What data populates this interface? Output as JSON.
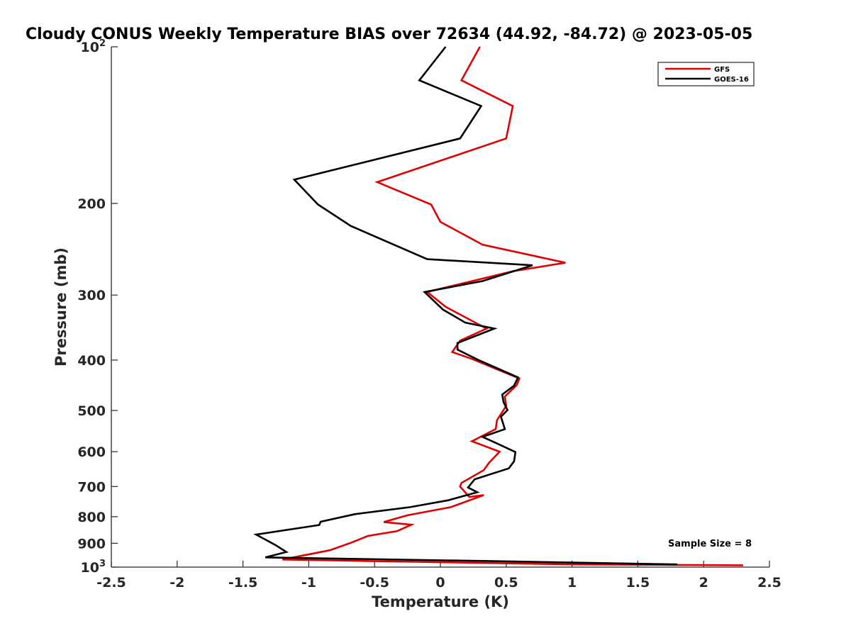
{
  "chart_data": {
    "type": "line",
    "title": "Cloudy CONUS Weekly Temperature BIAS over 72634 (44.92, -84.72) @ 2023-05-05",
    "xlabel": "Temperature (K)",
    "ylabel": "Pressure (mb)",
    "xlim": [
      -2.5,
      2.5
    ],
    "ylim": [
      100,
      1000
    ],
    "y_scale": "log",
    "y_reversed": true,
    "grid": false,
    "legend_position": "top-right",
    "x_ticks": [
      "-2.5",
      "-2",
      "-1.5",
      "-1",
      "-0.5",
      "0",
      "0.5",
      "1",
      "1.5",
      "2",
      "2.5"
    ],
    "x_tick_values": [
      -2.5,
      -2,
      -1.5,
      -1,
      -0.5,
      0,
      0.5,
      1,
      1.5,
      2,
      2.5
    ],
    "y_ticks": [
      {
        "value": 100,
        "base": "10",
        "exp": "2"
      },
      {
        "value": 200,
        "label": "200"
      },
      {
        "value": 300,
        "label": "300"
      },
      {
        "value": 400,
        "label": "400"
      },
      {
        "value": 500,
        "label": "500"
      },
      {
        "value": 600,
        "label": "600"
      },
      {
        "value": 700,
        "label": "700"
      },
      {
        "value": 800,
        "label": "800"
      },
      {
        "value": 900,
        "label": "900"
      },
      {
        "value": 1000,
        "base": "10",
        "exp": "3"
      }
    ],
    "annotation": "Sample Size = 8",
    "series": [
      {
        "name": "GFS",
        "color": "#e00000",
        "points": [
          [
            0.3,
            100
          ],
          [
            0.16,
            116
          ],
          [
            0.55,
            130
          ],
          [
            0.5,
            150
          ],
          [
            -0.48,
            182
          ],
          [
            -0.07,
            201
          ],
          [
            0,
            217
          ],
          [
            0.32,
            240
          ],
          [
            0.95,
            260
          ],
          [
            0.55,
            270
          ],
          [
            -0.1,
            296
          ],
          [
            0.04,
            316
          ],
          [
            0.35,
            348
          ],
          [
            0.15,
            367
          ],
          [
            0.09,
            386
          ],
          [
            0.24,
            398
          ],
          [
            0.6,
            434
          ],
          [
            0.58,
            447
          ],
          [
            0.49,
            470
          ],
          [
            0.5,
            490
          ],
          [
            0.43,
            522
          ],
          [
            0.42,
            543
          ],
          [
            0.24,
            573
          ],
          [
            0.45,
            600
          ],
          [
            0.37,
            630
          ],
          [
            0.33,
            651
          ],
          [
            0.16,
            689
          ],
          [
            0.15,
            700
          ],
          [
            0.22,
            733
          ],
          [
            0.33,
            727
          ],
          [
            0.08,
            767
          ],
          [
            -0.25,
            795
          ],
          [
            -0.43,
            819
          ],
          [
            -0.22,
            829
          ],
          [
            -0.33,
            853
          ],
          [
            -0.55,
            871
          ],
          [
            -0.68,
            898
          ],
          [
            -0.84,
            928
          ],
          [
            -1.2,
            967
          ],
          [
            1.0,
            988
          ],
          [
            2.3,
            992
          ]
        ]
      },
      {
        "name": "GOES-16",
        "color": "#000000",
        "points": [
          [
            0.04,
            100
          ],
          [
            -0.16,
            116
          ],
          [
            0.31,
            130
          ],
          [
            0.15,
            150
          ],
          [
            -1.11,
            180
          ],
          [
            -0.93,
            201
          ],
          [
            -0.68,
            221
          ],
          [
            -0.1,
            256
          ],
          [
            0.7,
            263
          ],
          [
            0.32,
            282
          ],
          [
            -0.12,
            296
          ],
          [
            0.02,
            320
          ],
          [
            0.19,
            339
          ],
          [
            0.41,
            348
          ],
          [
            0.13,
            371
          ],
          [
            0.13,
            382
          ],
          [
            0.29,
            400
          ],
          [
            0.59,
            432
          ],
          [
            0.56,
            448
          ],
          [
            0.47,
            466
          ],
          [
            0.48,
            482
          ],
          [
            0.51,
            499
          ],
          [
            0.46,
            514
          ],
          [
            0.49,
            543
          ],
          [
            0.32,
            562
          ],
          [
            0.44,
            580
          ],
          [
            0.57,
            601
          ],
          [
            0.56,
            626
          ],
          [
            0.52,
            646
          ],
          [
            0.26,
            678
          ],
          [
            0.21,
            703
          ],
          [
            0.28,
            718
          ],
          [
            0.06,
            744
          ],
          [
            -0.23,
            767
          ],
          [
            -0.65,
            791
          ],
          [
            -0.91,
            818
          ],
          [
            -0.92,
            830
          ],
          [
            -1.4,
            866
          ],
          [
            -1.25,
            908
          ],
          [
            -1.17,
            935
          ],
          [
            -1.33,
            958
          ],
          [
            0.4,
            974
          ],
          [
            1.8,
            988
          ]
        ]
      }
    ]
  }
}
